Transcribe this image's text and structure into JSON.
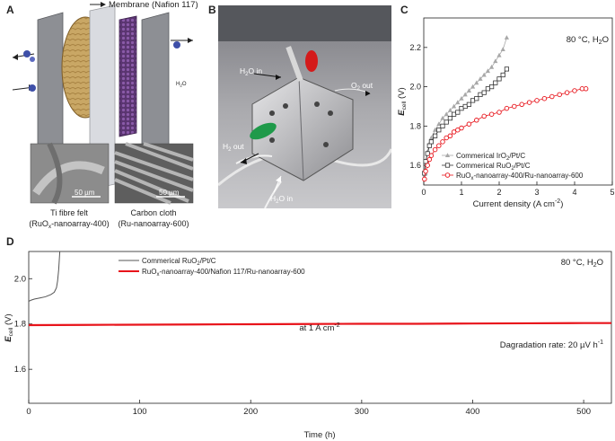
{
  "panels": {
    "a": {
      "letter": "A",
      "membrane_label": "Membrane (Nafion 117)",
      "h2o_label": "H",
      "h2o_sub": "2",
      "h2o_tail": "O",
      "scale_bar_left": "50 µm",
      "scale_bar_right": "50 µm",
      "caption_left_line1": "Ti fibre felt",
      "caption_left_line2_pre": "(RuO",
      "caption_left_line2_sub": "x",
      "caption_left_line2_post": "-nanoarray-400)",
      "caption_right_line1": "Carbon cloth",
      "caption_right_line2": "(Ru-nanoarray-600)"
    },
    "b": {
      "letter": "B",
      "label_h2o_in_top": "H",
      "label_h2o_in_top_sub": "2",
      "label_h2o_in_top_tail": "O in",
      "label_o2_out": "O",
      "label_o2_out_sub": "2",
      "label_o2_out_tail": " out",
      "label_h2_out": "H",
      "label_h2_out_sub": "2",
      "label_h2_out_tail": " out",
      "label_h2o_in_bottom": "H",
      "label_h2o_in_bottom_sub": "2",
      "label_h2o_in_bottom_tail": "O in"
    },
    "c": {
      "letter": "C",
      "condition": "80 °C, H",
      "condition_sub": "2",
      "condition_tail": "O",
      "ylabel": "E",
      "ylabel_sub": "cell",
      "ylabel_tail": " (V)",
      "xlabel": "Current density (A cm",
      "xlabel_sup": "-2",
      "xlabel_tail": ")",
      "legend": [
        {
          "pre": "Commerical IrO",
          "sub": "2",
          "post": "/Pt/C"
        },
        {
          "pre": "Commerical RuO",
          "sub": "2",
          "post": "/Pt/C"
        },
        {
          "pre": "RuO",
          "sub": "x",
          "post": "-nanoarray-400/Ru-nanoarray-600"
        }
      ]
    },
    "d": {
      "letter": "D",
      "condition": "80 °C, H",
      "condition_sub": "2",
      "condition_tail": "O",
      "ylabel": "E",
      "ylabel_sub": "cell",
      "ylabel_tail": " (V)",
      "xlabel": "Time (h)",
      "annotation": "at 1 A cm",
      "annotation_sup": "-2",
      "degradation": "Dagradation rate: 20 µV h",
      "degradation_sup": "-1",
      "legend": [
        {
          "pre": "Commerical RuO",
          "sub": "2",
          "post": "/Pt/C"
        },
        {
          "pre": "RuO",
          "sub": "x",
          "post": "-nanoarray-400/Nafion 117/Ru-nanoarray-600"
        }
      ]
    }
  },
  "colors": {
    "iro2": "#a8a8a8",
    "ruo2": "#333333",
    "nanoarray": "#e8141b",
    "axis": "#222222"
  },
  "chart_data": [
    {
      "type": "scatter",
      "panel": "C",
      "xlabel": "Current density (A cm-2)",
      "ylabel": "Ecell (V)",
      "xlim": [
        0,
        5
      ],
      "ylim": [
        1.5,
        2.35
      ],
      "xticks": [
        0,
        1,
        2,
        3,
        4,
        5
      ],
      "yticks": [
        1.6,
        1.8,
        2.0,
        2.2
      ],
      "legend_position": "bottom-right",
      "series": [
        {
          "name": "Commerical IrO2/Pt/C",
          "marker": "triangle",
          "color": "#a8a8a8",
          "x": [
            0.02,
            0.05,
            0.1,
            0.15,
            0.2,
            0.3,
            0.4,
            0.5,
            0.6,
            0.7,
            0.8,
            0.9,
            1.0,
            1.1,
            1.2,
            1.3,
            1.4,
            1.5,
            1.6,
            1.7,
            1.8,
            1.9,
            2.0,
            2.1,
            2.2
          ],
          "y": [
            1.56,
            1.62,
            1.67,
            1.71,
            1.74,
            1.78,
            1.81,
            1.84,
            1.86,
            1.88,
            1.9,
            1.92,
            1.94,
            1.96,
            1.98,
            2.0,
            2.02,
            2.04,
            2.06,
            2.08,
            2.1,
            2.13,
            2.16,
            2.19,
            2.25
          ]
        },
        {
          "name": "Commerical RuO2/Pt/C",
          "marker": "square",
          "color": "#333333",
          "x": [
            0.02,
            0.05,
            0.1,
            0.15,
            0.2,
            0.3,
            0.4,
            0.5,
            0.6,
            0.7,
            0.8,
            0.9,
            1.0,
            1.1,
            1.2,
            1.3,
            1.4,
            1.5,
            1.6,
            1.7,
            1.8,
            1.9,
            2.0,
            2.1,
            2.2
          ],
          "y": [
            1.56,
            1.62,
            1.66,
            1.7,
            1.72,
            1.75,
            1.78,
            1.8,
            1.82,
            1.84,
            1.86,
            1.87,
            1.89,
            1.9,
            1.91,
            1.93,
            1.94,
            1.96,
            1.97,
            1.99,
            2.0,
            2.02,
            2.04,
            2.06,
            2.09
          ]
        },
        {
          "name": "RuOx-nanoarray-400/Ru-nanoarray-600",
          "marker": "circle",
          "color": "#e8141b",
          "x": [
            0.02,
            0.05,
            0.1,
            0.15,
            0.2,
            0.3,
            0.4,
            0.5,
            0.6,
            0.7,
            0.8,
            0.9,
            1.0,
            1.2,
            1.4,
            1.6,
            1.8,
            2.0,
            2.2,
            2.4,
            2.6,
            2.8,
            3.0,
            3.2,
            3.4,
            3.6,
            3.8,
            4.0,
            4.2,
            4.3
          ],
          "y": [
            1.53,
            1.57,
            1.6,
            1.63,
            1.65,
            1.68,
            1.7,
            1.72,
            1.74,
            1.75,
            1.77,
            1.78,
            1.79,
            1.81,
            1.83,
            1.85,
            1.86,
            1.87,
            1.89,
            1.9,
            1.91,
            1.92,
            1.93,
            1.94,
            1.95,
            1.96,
            1.97,
            1.98,
            1.99,
            1.99
          ]
        }
      ]
    },
    {
      "type": "line",
      "panel": "D",
      "xlabel": "Time (h)",
      "ylabel": "Ecell (V)",
      "xlim": [
        0,
        525
      ],
      "ylim": [
        1.45,
        2.12
      ],
      "xticks": [
        0,
        100,
        200,
        300,
        400,
        500
      ],
      "yticks": [
        1.6,
        1.8,
        2.0
      ],
      "legend_position": "top-left",
      "series": [
        {
          "name": "Commerical RuO2/Pt/C",
          "color": "#555555",
          "x": [
            0,
            2,
            5,
            10,
            15,
            20,
            23,
            25,
            26,
            27,
            28
          ],
          "y": [
            1.9,
            1.905,
            1.91,
            1.915,
            1.92,
            1.93,
            1.94,
            1.96,
            1.99,
            2.04,
            2.12
          ]
        },
        {
          "name": "RuOx-nanoarray-400/Nafion 117/Ru-nanoarray-600",
          "color": "#e8141b",
          "x": [
            0,
            50,
            100,
            150,
            200,
            250,
            300,
            350,
            400,
            450,
            500,
            525
          ],
          "y": [
            1.795,
            1.796,
            1.797,
            1.798,
            1.799,
            1.8,
            1.801,
            1.801,
            1.802,
            1.803,
            1.804,
            1.804
          ]
        }
      ]
    }
  ]
}
